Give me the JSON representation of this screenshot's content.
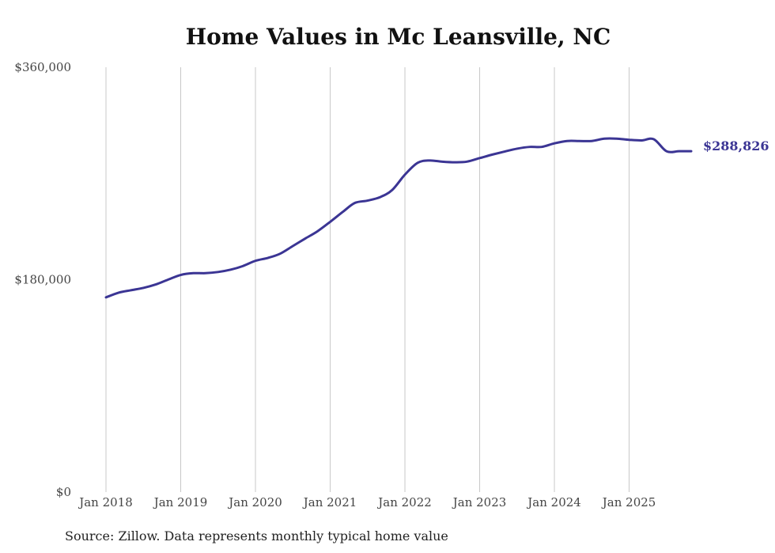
{
  "chart_data": {
    "type": "line",
    "title": "Home Values in Mc Leansville, NC",
    "xlabel": "",
    "ylabel": "",
    "ylim": [
      0,
      360000
    ],
    "y_ticks": [
      {
        "value": 0,
        "label": "$0"
      },
      {
        "value": 180000,
        "label": "$180,000"
      },
      {
        "value": 360000,
        "label": "$360,000"
      }
    ],
    "x_ticks": [
      {
        "value": 2018,
        "label": "Jan 2018"
      },
      {
        "value": 2019,
        "label": "Jan 2019"
      },
      {
        "value": 2020,
        "label": "Jan 2020"
      },
      {
        "value": 2021,
        "label": "Jan 2021"
      },
      {
        "value": 2022,
        "label": "Jan 2022"
      },
      {
        "value": 2023,
        "label": "Jan 2023"
      },
      {
        "value": 2024,
        "label": "Jan 2024"
      },
      {
        "value": 2025,
        "label": "Jan 2025"
      }
    ],
    "xlim": [
      2018,
      2025.83
    ],
    "grid": "vertical",
    "line_color": "#3b3594",
    "series": [
      {
        "name": "Typical home value",
        "x": [
          2018.0,
          2018.17,
          2018.33,
          2018.5,
          2018.67,
          2018.83,
          2019.0,
          2019.17,
          2019.33,
          2019.5,
          2019.67,
          2019.83,
          2020.0,
          2020.17,
          2020.33,
          2020.5,
          2020.67,
          2020.83,
          2021.0,
          2021.17,
          2021.33,
          2021.5,
          2021.67,
          2021.83,
          2022.0,
          2022.17,
          2022.33,
          2022.5,
          2022.67,
          2022.83,
          2023.0,
          2023.17,
          2023.33,
          2023.5,
          2023.67,
          2023.83,
          2024.0,
          2024.17,
          2024.33,
          2024.5,
          2024.67,
          2024.83,
          2025.0,
          2025.17,
          2025.33,
          2025.5,
          2025.67,
          2025.83
        ],
        "values": [
          165000,
          169000,
          171000,
          173000,
          176000,
          180000,
          184000,
          185500,
          185500,
          186500,
          188500,
          191500,
          196000,
          198500,
          202000,
          208500,
          215000,
          221000,
          229000,
          237500,
          245000,
          247000,
          250000,
          256000,
          269000,
          279000,
          281000,
          280000,
          279500,
          280000,
          283000,
          286000,
          288500,
          291000,
          292500,
          292500,
          295500,
          297500,
          297500,
          297500,
          299500,
          299500,
          298500,
          298000,
          299000,
          288826,
          288826,
          288826
        ]
      }
    ],
    "end_label": "$288,826",
    "source": "Source: Zillow. Data represents monthly typical home value"
  }
}
